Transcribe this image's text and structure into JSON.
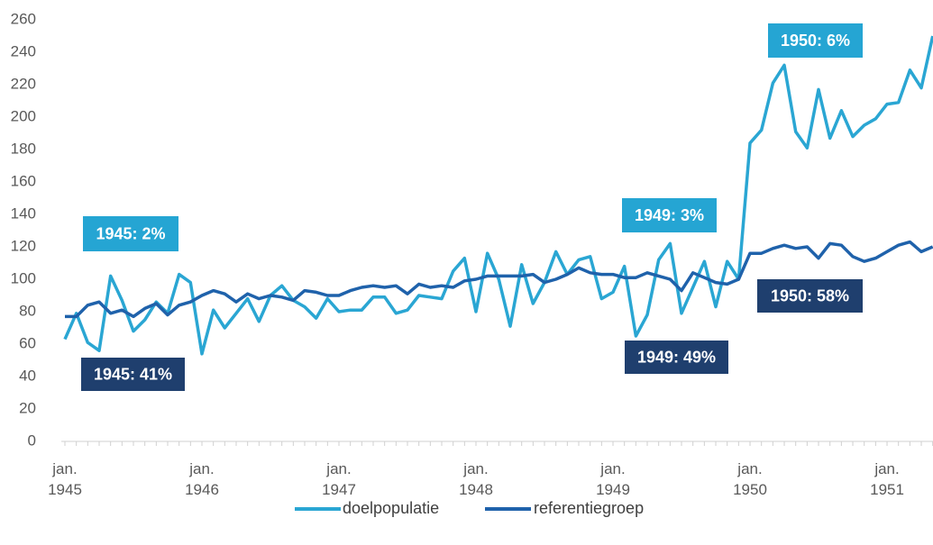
{
  "chart_data": {
    "type": "line",
    "categories": [
      "jan. 1945",
      null,
      null,
      null,
      null,
      null,
      null,
      null,
      null,
      null,
      null,
      null,
      "jan. 1946",
      null,
      null,
      null,
      null,
      null,
      null,
      null,
      null,
      null,
      null,
      null,
      "jan. 1947",
      null,
      null,
      null,
      null,
      null,
      null,
      null,
      null,
      null,
      null,
      null,
      "jan. 1948",
      null,
      null,
      null,
      null,
      null,
      null,
      null,
      null,
      null,
      null,
      null,
      "jan. 1949",
      null,
      null,
      null,
      null,
      null,
      null,
      null,
      null,
      null,
      null,
      null,
      "jan. 1950",
      null,
      null,
      null,
      null,
      null,
      null,
      null,
      null,
      null,
      null,
      null,
      "jan. 1951",
      null,
      null,
      null,
      null
    ],
    "series": [
      {
        "name": "doelpopulatie",
        "color": "#2aa6d3",
        "values": [
          63,
          79,
          61,
          56,
          102,
          87,
          68,
          75,
          86,
          79,
          103,
          98,
          54,
          81,
          70,
          79,
          88,
          74,
          90,
          96,
          87,
          83,
          76,
          88,
          80,
          81,
          81,
          89,
          89,
          79,
          81,
          90,
          89,
          88,
          105,
          113,
          80,
          116,
          100,
          71,
          109,
          85,
          98,
          117,
          103,
          112,
          114,
          88,
          92,
          108,
          65,
          78,
          112,
          122,
          79,
          95,
          111,
          83,
          111,
          100,
          184,
          192,
          221,
          232,
          191,
          181,
          217,
          187,
          204,
          188,
          195,
          199,
          208,
          209,
          229,
          218,
          250
        ]
      },
      {
        "name": "referentiegroep",
        "color": "#1f62ab",
        "values": [
          77,
          77,
          84,
          86,
          79,
          81,
          77,
          82,
          85,
          78,
          84,
          86,
          90,
          93,
          91,
          86,
          91,
          88,
          90,
          89,
          87,
          93,
          92,
          90,
          90,
          93,
          95,
          96,
          95,
          96,
          91,
          97,
          95,
          96,
          95,
          99,
          100,
          102,
          102,
          102,
          102,
          103,
          98,
          100,
          103,
          107,
          104,
          103,
          103,
          101,
          101,
          104,
          102,
          100,
          93,
          104,
          101,
          98,
          97,
          100,
          116,
          116,
          119,
          121,
          119,
          120,
          113,
          122,
          121,
          114,
          111,
          113,
          117,
          121,
          123,
          117,
          120
        ]
      }
    ],
    "ylim": [
      0,
      260
    ],
    "yticks": [
      0,
      20,
      40,
      60,
      80,
      100,
      120,
      140,
      160,
      180,
      200,
      220,
      240,
      260
    ],
    "grid": false,
    "legend": "bottom",
    "annotations": [
      {
        "text": "1945: 2%",
        "color": "#25a5d3"
      },
      {
        "text": "1945: 41%",
        "color": "#1f3f6e"
      },
      {
        "text": "1949: 3%",
        "color": "#25a5d3"
      },
      {
        "text": "1949: 49%",
        "color": "#1f3f6e"
      },
      {
        "text": "1950: 6%",
        "color": "#25a5d3"
      },
      {
        "text": "1950: 58%",
        "color": "#1f3f6e"
      }
    ]
  }
}
